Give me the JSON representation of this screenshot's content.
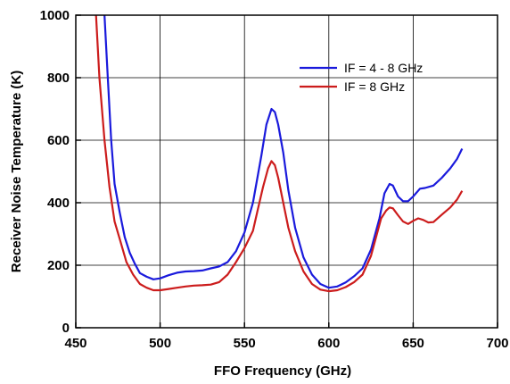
{
  "chart_data": {
    "type": "line",
    "xlabel": "FFO Frequency (GHz)",
    "ylabel": "Receiver Noise Temperature (K)",
    "xlim": [
      450,
      700
    ],
    "ylim": [
      0,
      1000
    ],
    "x_ticks": [
      450,
      500,
      550,
      600,
      650,
      700
    ],
    "y_ticks": [
      0,
      200,
      400,
      600,
      800,
      1000
    ],
    "grid": true,
    "legend_position": "top-right",
    "series": [
      {
        "name": "IF = 4 - 8 GHz",
        "color": "#1a1adc",
        "points": [
          [
            467,
            1000
          ],
          [
            469,
            800
          ],
          [
            471,
            600
          ],
          [
            473,
            460
          ],
          [
            476,
            370
          ],
          [
            479,
            290
          ],
          [
            482,
            240
          ],
          [
            485,
            205
          ],
          [
            488,
            175
          ],
          [
            492,
            163
          ],
          [
            496,
            155
          ],
          [
            500,
            158
          ],
          [
            505,
            168
          ],
          [
            510,
            176
          ],
          [
            515,
            180
          ],
          [
            520,
            181
          ],
          [
            525,
            183
          ],
          [
            530,
            190
          ],
          [
            535,
            196
          ],
          [
            540,
            210
          ],
          [
            545,
            245
          ],
          [
            550,
            305
          ],
          [
            555,
            400
          ],
          [
            560,
            550
          ],
          [
            563,
            650
          ],
          [
            566,
            700
          ],
          [
            568,
            690
          ],
          [
            570,
            650
          ],
          [
            573,
            560
          ],
          [
            576,
            440
          ],
          [
            580,
            320
          ],
          [
            585,
            225
          ],
          [
            590,
            170
          ],
          [
            595,
            140
          ],
          [
            600,
            128
          ],
          [
            605,
            132
          ],
          [
            610,
            145
          ],
          [
            615,
            165
          ],
          [
            620,
            190
          ],
          [
            625,
            250
          ],
          [
            630,
            350
          ],
          [
            633,
            430
          ],
          [
            636,
            460
          ],
          [
            638,
            455
          ],
          [
            641,
            420
          ],
          [
            644,
            405
          ],
          [
            647,
            405
          ],
          [
            650,
            420
          ],
          [
            654,
            445
          ],
          [
            657,
            447
          ],
          [
            662,
            455
          ],
          [
            667,
            480
          ],
          [
            672,
            510
          ],
          [
            676,
            540
          ],
          [
            679,
            573
          ]
        ]
      },
      {
        "name": "IF =  8 GHz",
        "color": "#cc1c1c",
        "points": [
          [
            462,
            1000
          ],
          [
            464,
            800
          ],
          [
            467,
            600
          ],
          [
            470,
            450
          ],
          [
            473,
            340
          ],
          [
            476,
            285
          ],
          [
            480,
            210
          ],
          [
            484,
            170
          ],
          [
            488,
            140
          ],
          [
            492,
            128
          ],
          [
            496,
            120
          ],
          [
            500,
            120
          ],
          [
            505,
            124
          ],
          [
            510,
            128
          ],
          [
            515,
            132
          ],
          [
            520,
            135
          ],
          [
            525,
            136
          ],
          [
            530,
            138
          ],
          [
            535,
            146
          ],
          [
            540,
            170
          ],
          [
            545,
            210
          ],
          [
            550,
            255
          ],
          [
            555,
            310
          ],
          [
            558,
            380
          ],
          [
            561,
            450
          ],
          [
            564,
            510
          ],
          [
            566,
            533
          ],
          [
            568,
            520
          ],
          [
            570,
            480
          ],
          [
            573,
            400
          ],
          [
            576,
            320
          ],
          [
            580,
            245
          ],
          [
            585,
            180
          ],
          [
            590,
            140
          ],
          [
            595,
            122
          ],
          [
            600,
            117
          ],
          [
            605,
            120
          ],
          [
            610,
            130
          ],
          [
            615,
            146
          ],
          [
            620,
            170
          ],
          [
            625,
            230
          ],
          [
            628,
            290
          ],
          [
            631,
            350
          ],
          [
            634,
            375
          ],
          [
            636,
            385
          ],
          [
            638,
            382
          ],
          [
            641,
            360
          ],
          [
            644,
            340
          ],
          [
            647,
            332
          ],
          [
            650,
            342
          ],
          [
            653,
            350
          ],
          [
            656,
            345
          ],
          [
            659,
            337
          ],
          [
            662,
            338
          ],
          [
            667,
            362
          ],
          [
            672,
            385
          ],
          [
            676,
            410
          ],
          [
            679,
            438
          ]
        ]
      }
    ]
  }
}
